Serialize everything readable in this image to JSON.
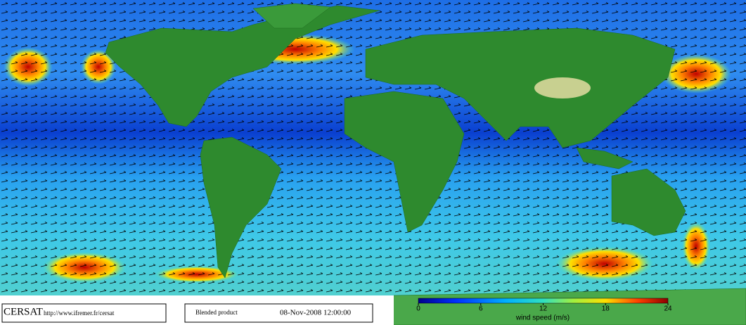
{
  "footer": {
    "logo": "CERSAT",
    "url": "http://www.ifremer.fr/cersat",
    "product": "Blended product",
    "date": "08-Nov-2008 12:00:00"
  },
  "colorbar": {
    "label": "wind speed (m/s)",
    "lim": [
      0,
      24
    ],
    "ticks": [
      0,
      6,
      12,
      18,
      24
    ]
  }
}
